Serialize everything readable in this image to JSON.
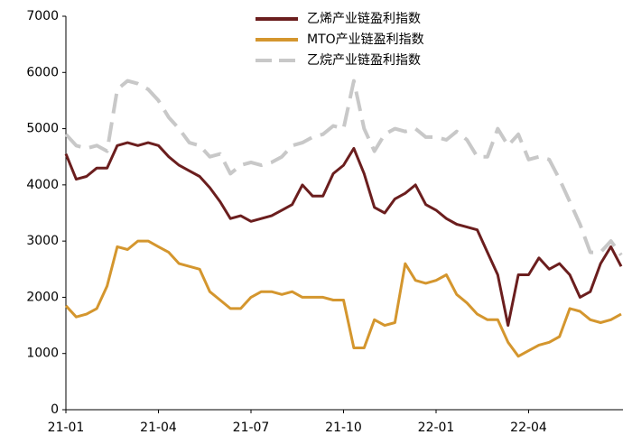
{
  "chart_data": {
    "type": "line",
    "categories": [
      "21-01",
      null,
      null,
      null,
      null,
      null,
      null,
      null,
      null,
      "21-04",
      null,
      null,
      null,
      null,
      null,
      null,
      null,
      null,
      "21-07",
      null,
      null,
      null,
      null,
      null,
      null,
      null,
      null,
      "21-10",
      null,
      null,
      null,
      null,
      null,
      null,
      null,
      null,
      "22-01",
      null,
      null,
      null,
      null,
      null,
      null,
      null,
      null,
      "22-04",
      null,
      null,
      null,
      null,
      null,
      null,
      null,
      null,
      null
    ],
    "series": [
      {
        "name": "乙烯产业链盈利指数",
        "color": "#6b1e1e",
        "style": "solid",
        "values": [
          4550,
          4100,
          4150,
          4300,
          4300,
          4700,
          4750,
          4700,
          4750,
          4700,
          4500,
          4350,
          4250,
          4150,
          3950,
          3700,
          3400,
          3450,
          3350,
          3400,
          3450,
          3550,
          3650,
          4000,
          3800,
          3800,
          4200,
          4350,
          4650,
          4200,
          3600,
          3500,
          3750,
          3850,
          4000,
          3650,
          3550,
          3400,
          3300,
          3250,
          3200,
          2800,
          2400,
          1500,
          2400,
          2400,
          2700,
          2500,
          2600,
          2400,
          2000,
          2100,
          2600,
          2900,
          2550
        ]
      },
      {
        "name": "MTO产业链盈利指数",
        "color": "#d4962e",
        "style": "solid",
        "values": [
          1850,
          1650,
          1700,
          1800,
          2200,
          2900,
          2850,
          3000,
          3000,
          2900,
          2800,
          2600,
          2550,
          2500,
          2100,
          1950,
          1800,
          1800,
          2000,
          2100,
          2100,
          2050,
          2100,
          2000,
          2000,
          2000,
          1950,
          1950,
          1100,
          1100,
          1600,
          1500,
          1550,
          2600,
          2300,
          2250,
          2300,
          2400,
          2050,
          1900,
          1700,
          1600,
          1600,
          1200,
          950,
          1050,
          1150,
          1200,
          1300,
          1800,
          1750,
          1600,
          1550,
          1600,
          1700
        ]
      },
      {
        "name": "乙烷产业链盈利指数",
        "color": "#c8c8c8",
        "style": "dashed",
        "values": [
          4900,
          4700,
          4650,
          4700,
          4600,
          5700,
          5850,
          5800,
          5700,
          5500,
          5200,
          5000,
          4750,
          4700,
          4500,
          4550,
          4200,
          4350,
          4400,
          4350,
          4400,
          4500,
          4700,
          4750,
          4850,
          4900,
          5050,
          5000,
          5850,
          5000,
          4600,
          4900,
          5000,
          4950,
          5000,
          4850,
          4850,
          4800,
          4950,
          4800,
          4500,
          4500,
          5000,
          4700,
          4900,
          4450,
          4500,
          4450,
          4100,
          3700,
          3300,
          2800,
          2800,
          3000,
          2750
        ]
      }
    ],
    "ylim": [
      0,
      7000
    ],
    "yticks": [
      0,
      1000,
      2000,
      3000,
      4000,
      5000,
      6000,
      7000
    ],
    "grid": false,
    "legend": "top"
  }
}
